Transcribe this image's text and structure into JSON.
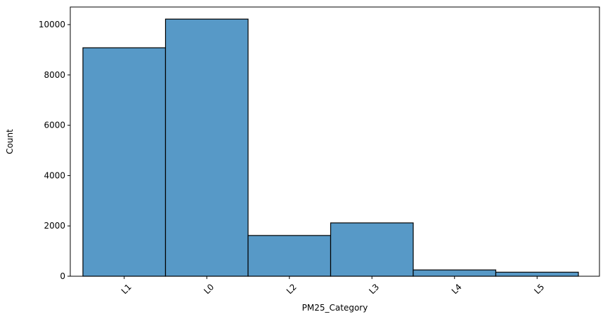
{
  "chart_data": {
    "type": "bar",
    "title": "",
    "xlabel": "PM25_Category",
    "ylabel": "Count",
    "categories": [
      "L1",
      "L0",
      "L2",
      "L3",
      "L4",
      "L5"
    ],
    "values": [
      9080,
      10220,
      1620,
      2120,
      250,
      160
    ],
    "ylim": [
      0,
      10700
    ],
    "yticks": [
      0,
      2000,
      4000,
      6000,
      8000,
      10000
    ],
    "grid": false,
    "legend": "none",
    "bar_color": "#5799c7",
    "edge_color": "#000000"
  }
}
